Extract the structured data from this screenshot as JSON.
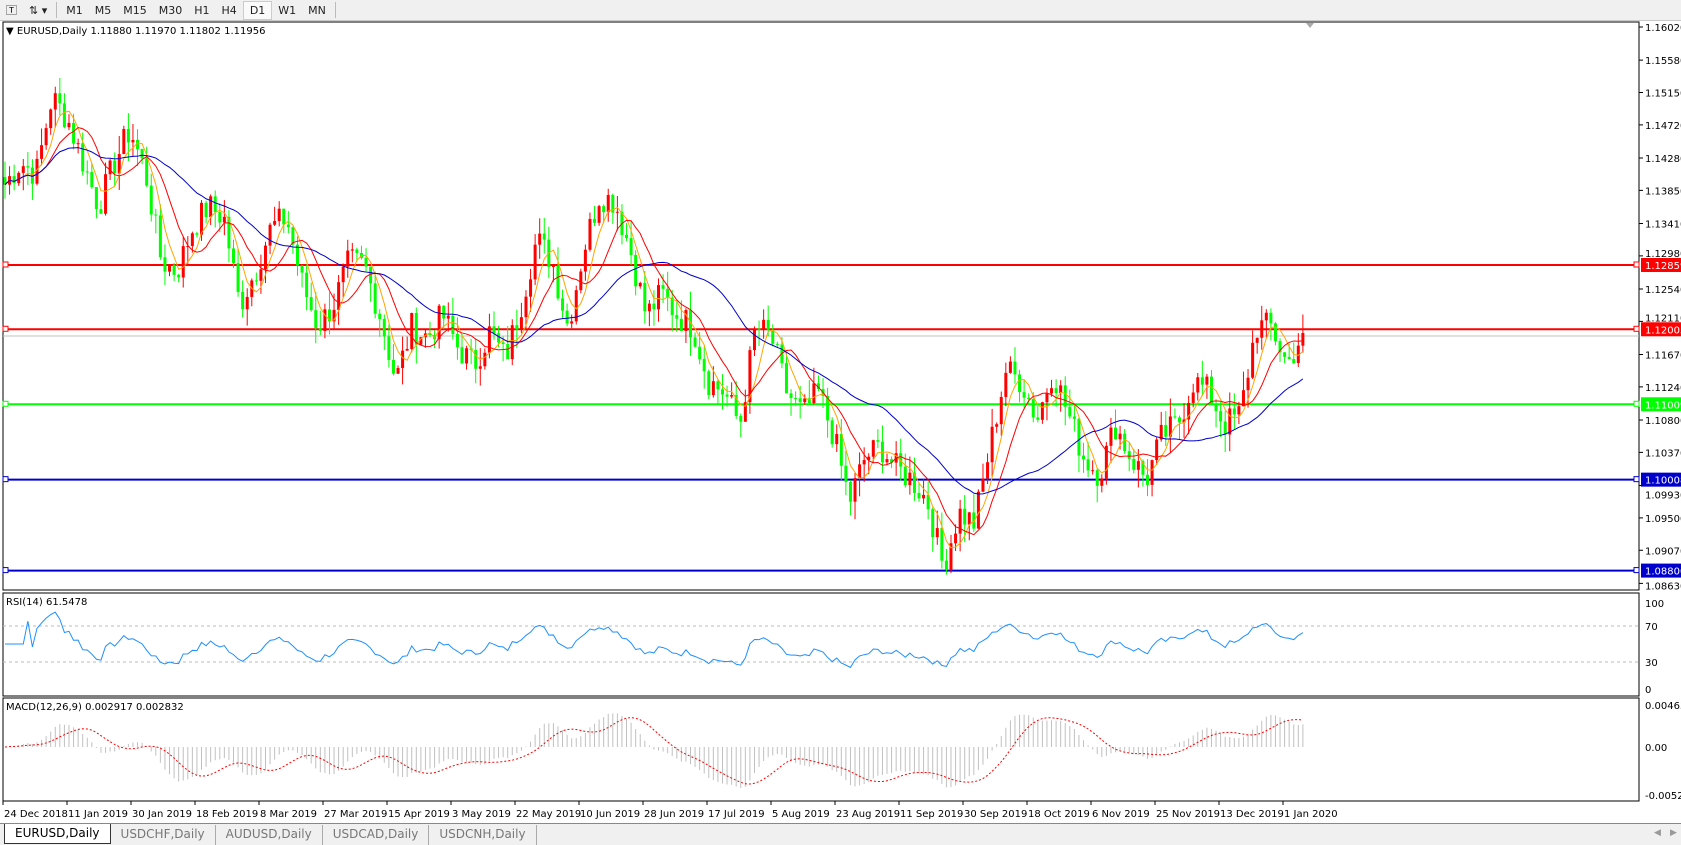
{
  "toolbar": {
    "timeframes": [
      "M1",
      "M5",
      "M15",
      "M30",
      "H1",
      "H4",
      "D1",
      "W1",
      "MN"
    ],
    "active": "D1"
  },
  "chart_data": {
    "type": "candlestick",
    "title": "EURUSD,Daily",
    "ohlc_header": "1.11880 1.11970 1.11802 1.11956",
    "last_close": 1.11956,
    "ylim": [
      1.0863,
      1.1602
    ],
    "y_ticks": [
      "1.16020",
      "1.15580",
      "1.15150",
      "1.14720",
      "1.14280",
      "1.13850",
      "1.13410",
      "1.12980",
      "1.12540",
      "1.12110",
      "1.11670",
      "1.11240",
      "1.10800",
      "1.10370",
      "1.09930",
      "1.09500",
      "1.09070",
      "1.08630"
    ],
    "x_ticks": [
      "24 Dec 2018",
      "11 Jan 2019",
      "30 Jan 2019",
      "18 Feb 2019",
      "8 Mar 2019",
      "27 Mar 2019",
      "15 Apr 2019",
      "3 May 2019",
      "22 May 2019",
      "10 Jun 2019",
      "28 Jun 2019",
      "17 Jul 2019",
      "5 Aug 2019",
      "23 Aug 2019",
      "11 Sep 2019",
      "30 Sep 2019",
      "18 Oct 2019",
      "6 Nov 2019",
      "25 Nov 2019",
      "13 Dec 2019",
      "1 Jan 2020"
    ],
    "approx_close_path": [
      1.1393,
      1.1422,
      1.1407,
      1.1509,
      1.148,
      1.1422,
      1.1364,
      1.1422,
      1.1466,
      1.1407,
      1.1291,
      1.1277,
      1.1335,
      1.1364,
      1.1349,
      1.1233,
      1.1277,
      1.1335,
      1.1349,
      1.1262,
      1.1204,
      1.1233,
      1.1291,
      1.1284,
      1.1219,
      1.1132,
      1.1204,
      1.119,
      1.1219,
      1.1175,
      1.1153,
      1.1197,
      1.1161,
      1.1233,
      1.132,
      1.1291,
      1.1204,
      1.1306,
      1.1378,
      1.1371,
      1.1306,
      1.1219,
      1.1248,
      1.1219,
      1.1204,
      1.1132,
      1.1117,
      1.1074,
      1.1204,
      1.119,
      1.1117,
      1.1088,
      1.1117,
      1.1059,
      1.0972,
      1.103,
      1.1045,
      1.1016,
      1.1001,
      1.0972,
      1.0885,
      1.0957,
      1.0943,
      1.1045,
      1.1146,
      1.1132,
      1.1081,
      1.1146,
      1.1088,
      1.103,
      1.1008,
      1.1074,
      1.103,
      1.1001,
      1.1059,
      1.1074,
      1.1132,
      1.1117,
      1.1074,
      1.1088,
      1.1204,
      1.1204,
      1.1153,
      1.11956
    ],
    "colors": {
      "bull": "#ff0000",
      "bear": "#00ff00",
      "ma_fast": "#ffa500",
      "ma_mid": "#ff0000",
      "ma_slow": "#0000cd"
    },
    "hlines": [
      {
        "price": 1.12859,
        "label": "1.12859",
        "color": "#ff0000"
      },
      {
        "price": 1.12005,
        "label": "1.12005",
        "color": "#ff0000"
      },
      {
        "price": 1.11009,
        "label": "1.11009",
        "color": "#00ff00"
      },
      {
        "price": 1.10008,
        "label": "1.10008",
        "color": "#0000cd"
      },
      {
        "price": 1.088,
        "label": "1.08800",
        "color": "#0000cd"
      }
    ],
    "rsi": {
      "label": "RSI(14) 61.5478",
      "period": 14,
      "ticks": [
        "100",
        "70",
        "30",
        "0"
      ],
      "levels": [
        70,
        30
      ],
      "color": "#1e90ff"
    },
    "macd": {
      "label": "MACD(12,26,9) 0.002917 0.002832",
      "ticks": [
        "0.00463",
        "0.00",
        "-0.005299"
      ],
      "ylim": [
        -0.00529,
        0.00463
      ]
    }
  },
  "tabs": [
    "EURUSD,Daily",
    "USDCHF,Daily",
    "AUDUSD,Daily",
    "USDCAD,Daily",
    "USDCNH,Daily"
  ]
}
